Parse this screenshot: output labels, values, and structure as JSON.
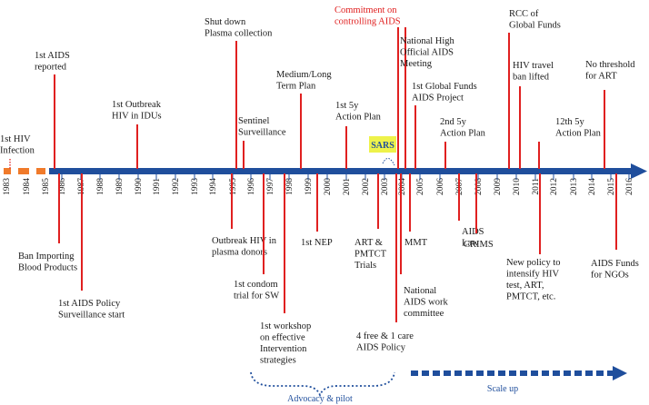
{
  "colors": {
    "axis": "#1f4e9c",
    "event_line": "#e02020",
    "prelude": "#f07a2a",
    "sars_highlight": "#eef24a"
  },
  "years": [
    "1983",
    "1984",
    "1985",
    "1986",
    "1987",
    "1988",
    "1989",
    "1990",
    "1991",
    "1992",
    "1993",
    "1994",
    "1995",
    "1996",
    "1997",
    "1998",
    "1999",
    "2000",
    "2001",
    "2002",
    "2003",
    "2004",
    "2005",
    "2006",
    "2007",
    "2008",
    "2009",
    "2010",
    "2011",
    "2012",
    "2013",
    "2014",
    "2015",
    "2016"
  ],
  "events_above": [
    {
      "id": "first-hiv-infection",
      "lines": [
        "1st HIV",
        "Infection"
      ],
      "dotted": true
    },
    {
      "id": "first-aids-reported",
      "lines": [
        "1st AIDS",
        "reported"
      ]
    },
    {
      "id": "first-outbreak-idus",
      "lines": [
        "1st Outbreak",
        "HIV in IDUs"
      ]
    },
    {
      "id": "shut-down-plasma",
      "lines": [
        "Shut down",
        "Plasma collection"
      ]
    },
    {
      "id": "sentinel-surveillance",
      "lines": [
        "Sentinel",
        "Surveillance"
      ]
    },
    {
      "id": "medium-long-term-plan",
      "lines": [
        "Medium/Long",
        "Term Plan"
      ]
    },
    {
      "id": "first-5y-plan",
      "lines": [
        "1st 5y",
        "Action Plan"
      ]
    },
    {
      "id": "commitment-aids",
      "lines": [
        "Commitment on",
        "controlling AIDS"
      ],
      "red": true
    },
    {
      "id": "national-high-meeting",
      "lines": [
        "National High",
        "Official AIDS",
        "Meeting"
      ]
    },
    {
      "id": "first-global-funds",
      "lines": [
        "1st Global Funds",
        "AIDS Project"
      ]
    },
    {
      "id": "second-5y-plan",
      "lines": [
        "2nd 5y",
        "Action Plan"
      ]
    },
    {
      "id": "rcc-global-funds",
      "lines": [
        "RCC of",
        "Global Funds"
      ]
    },
    {
      "id": "hiv-travel-ban",
      "lines": [
        "HIV travel",
        "ban lifted"
      ]
    },
    {
      "id": "twelfth-5y-plan",
      "lines": [
        "12th 5y",
        "Action Plan"
      ]
    },
    {
      "id": "no-threshold-art",
      "lines": [
        "No threshold",
        "for ART"
      ]
    }
  ],
  "events_below": [
    {
      "id": "ban-importing-blood",
      "lines": [
        "Ban Importing",
        "Blood Products"
      ]
    },
    {
      "id": "first-aids-policy",
      "lines": [
        "1st AIDS Policy",
        "Surveillance start"
      ]
    },
    {
      "id": "outbreak-plasma-donors",
      "lines": [
        "Outbreak HIV in",
        "plasma donors"
      ]
    },
    {
      "id": "first-condom-trial",
      "lines": [
        "1st condom",
        "trial for SW"
      ]
    },
    {
      "id": "first-workshop",
      "lines": [
        "1st workshop",
        "on effective",
        "Intervention",
        "strategies"
      ]
    },
    {
      "id": "first-nep",
      "lines": [
        "1st NEP"
      ]
    },
    {
      "id": "art-pmtct-trials",
      "lines": [
        "ART &",
        "PMTCT",
        "Trials"
      ]
    },
    {
      "id": "mmt",
      "lines": [
        "MMT"
      ]
    },
    {
      "id": "national-aids-committee",
      "lines": [
        "National",
        "AIDS work",
        "committee"
      ]
    },
    {
      "id": "four-free-one-care",
      "lines": [
        "4 free & 1 care",
        "AIDS Policy"
      ]
    },
    {
      "id": "aids-law",
      "lines": [
        "AIDS",
        "Law"
      ]
    },
    {
      "id": "crims",
      "lines": [
        "CRIMS"
      ]
    },
    {
      "id": "new-policy-intensify",
      "lines": [
        "New policy to",
        "intensify HIV",
        "test, ART,",
        "PMTCT, etc."
      ]
    },
    {
      "id": "aids-funds-ngos",
      "lines": [
        "AIDS Funds",
        "for NGOs"
      ]
    }
  ],
  "sars_label": "SARS",
  "phases": {
    "advocacy": "Advocacy & pilot",
    "scale_up": "Scale up"
  }
}
